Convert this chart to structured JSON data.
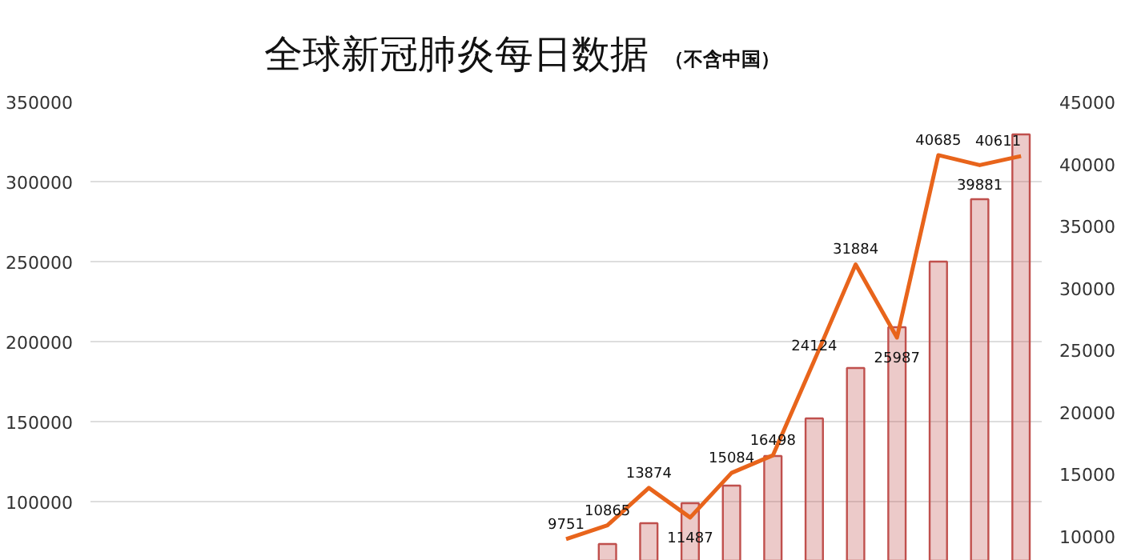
{
  "chart_data": {
    "type": "bar",
    "title": "全球新冠肺炎每日数据",
    "subtitle": "（不含中国）",
    "categories": [
      null,
      null,
      null,
      null,
      null,
      null,
      null,
      null,
      null,
      null,
      null,
      null,
      null,
      null,
      null,
      null,
      null,
      null,
      null,
      null,
      null,
      null,
      null
    ],
    "series": [
      {
        "color": "#c0504d",
        "values": [
          null,
          null,
          null,
          null,
          null,
          null,
          null,
          null,
          null,
          null,
          null,
          null,
          73500,
          86500,
          99000,
          110000,
          128500,
          152000,
          183500,
          209000,
          250000,
          289000,
          329500
        ]
      },
      {
        "type": "line",
        "axis": "y2",
        "color": "#e8641b",
        "values": [
          null,
          null,
          null,
          null,
          null,
          null,
          null,
          null,
          null,
          null,
          null,
          9751,
          10865,
          13874,
          11487,
          15084,
          16498,
          24124,
          31884,
          25987,
          40685,
          39881,
          40611
        ],
        "value_labels": [
          null,
          null,
          null,
          null,
          null,
          null,
          null,
          null,
          null,
          null,
          null,
          "9751",
          "10865",
          "13874",
          "11487",
          "15084",
          "16498",
          "24124",
          "31884",
          "25987",
          "40685",
          "39881",
          "40611"
        ]
      }
    ],
    "ylim": [
      63000,
      350000
    ],
    "yticks": [
      100000,
      150000,
      200000,
      250000,
      300000,
      350000
    ],
    "y2lim": [
      8000,
      45000
    ],
    "y2ticks": [
      10000,
      15000,
      20000,
      25000,
      30000,
      35000,
      40000,
      45000
    ],
    "grid": "y",
    "marker": "none"
  }
}
